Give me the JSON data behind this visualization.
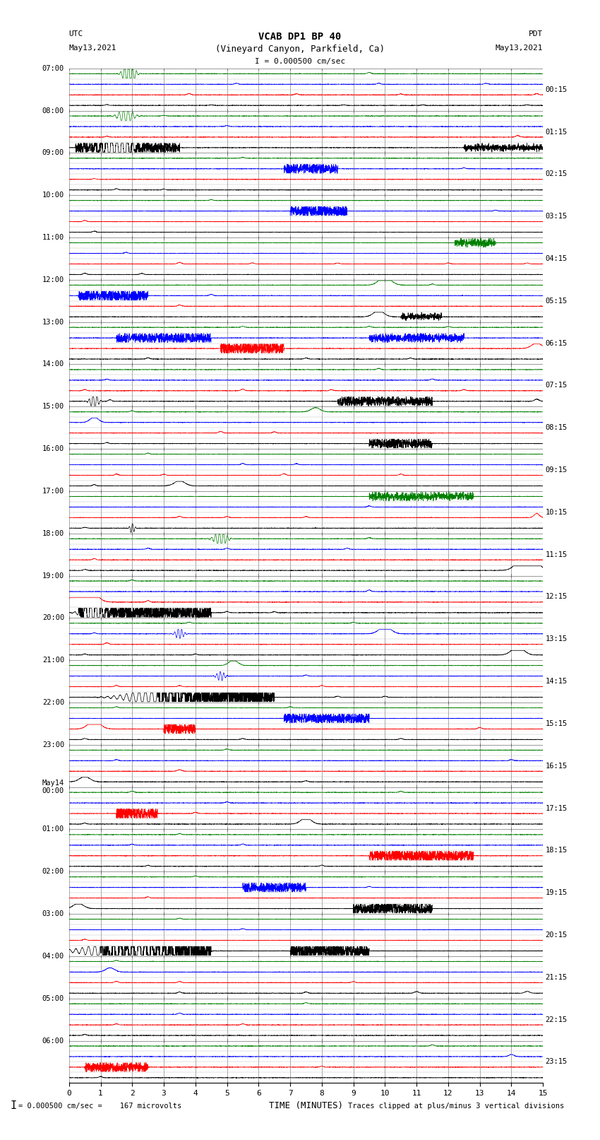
{
  "title_line1": "VCAB DP1 BP 40",
  "title_line2": "(Vineyard Canyon, Parkfield, Ca)",
  "title_line3": "I = 0.000500 cm/sec",
  "label_utc": "UTC",
  "label_pdt": "PDT",
  "label_date_left": "May13,2021",
  "label_date_right": "May13,2021",
  "xlabel": "TIME (MINUTES)",
  "footer_left": "= 0.000500 cm/sec =    167 microvolts",
  "footer_right": "Traces clipped at plus/minus 3 vertical divisions",
  "utc_times": [
    "07:00",
    "08:00",
    "09:00",
    "10:00",
    "11:00",
    "12:00",
    "13:00",
    "14:00",
    "15:00",
    "16:00",
    "17:00",
    "18:00",
    "19:00",
    "20:00",
    "21:00",
    "22:00",
    "23:00",
    "May14\n00:00",
    "01:00",
    "02:00",
    "03:00",
    "04:00",
    "05:00",
    "06:00"
  ],
  "pdt_times": [
    "00:15",
    "01:15",
    "02:15",
    "03:15",
    "04:15",
    "05:15",
    "06:15",
    "07:15",
    "08:15",
    "09:15",
    "10:15",
    "11:15",
    "12:15",
    "13:15",
    "14:15",
    "15:15",
    "16:15",
    "17:15",
    "18:15",
    "19:15",
    "20:15",
    "21:15",
    "22:15",
    "23:15"
  ],
  "num_rows": 24,
  "x_min": 0,
  "x_max": 15,
  "subrows_per_row": 4,
  "colors": [
    "#000000",
    "#ff0000",
    "#0000ff",
    "#008000"
  ],
  "bg_color": "#ffffff"
}
